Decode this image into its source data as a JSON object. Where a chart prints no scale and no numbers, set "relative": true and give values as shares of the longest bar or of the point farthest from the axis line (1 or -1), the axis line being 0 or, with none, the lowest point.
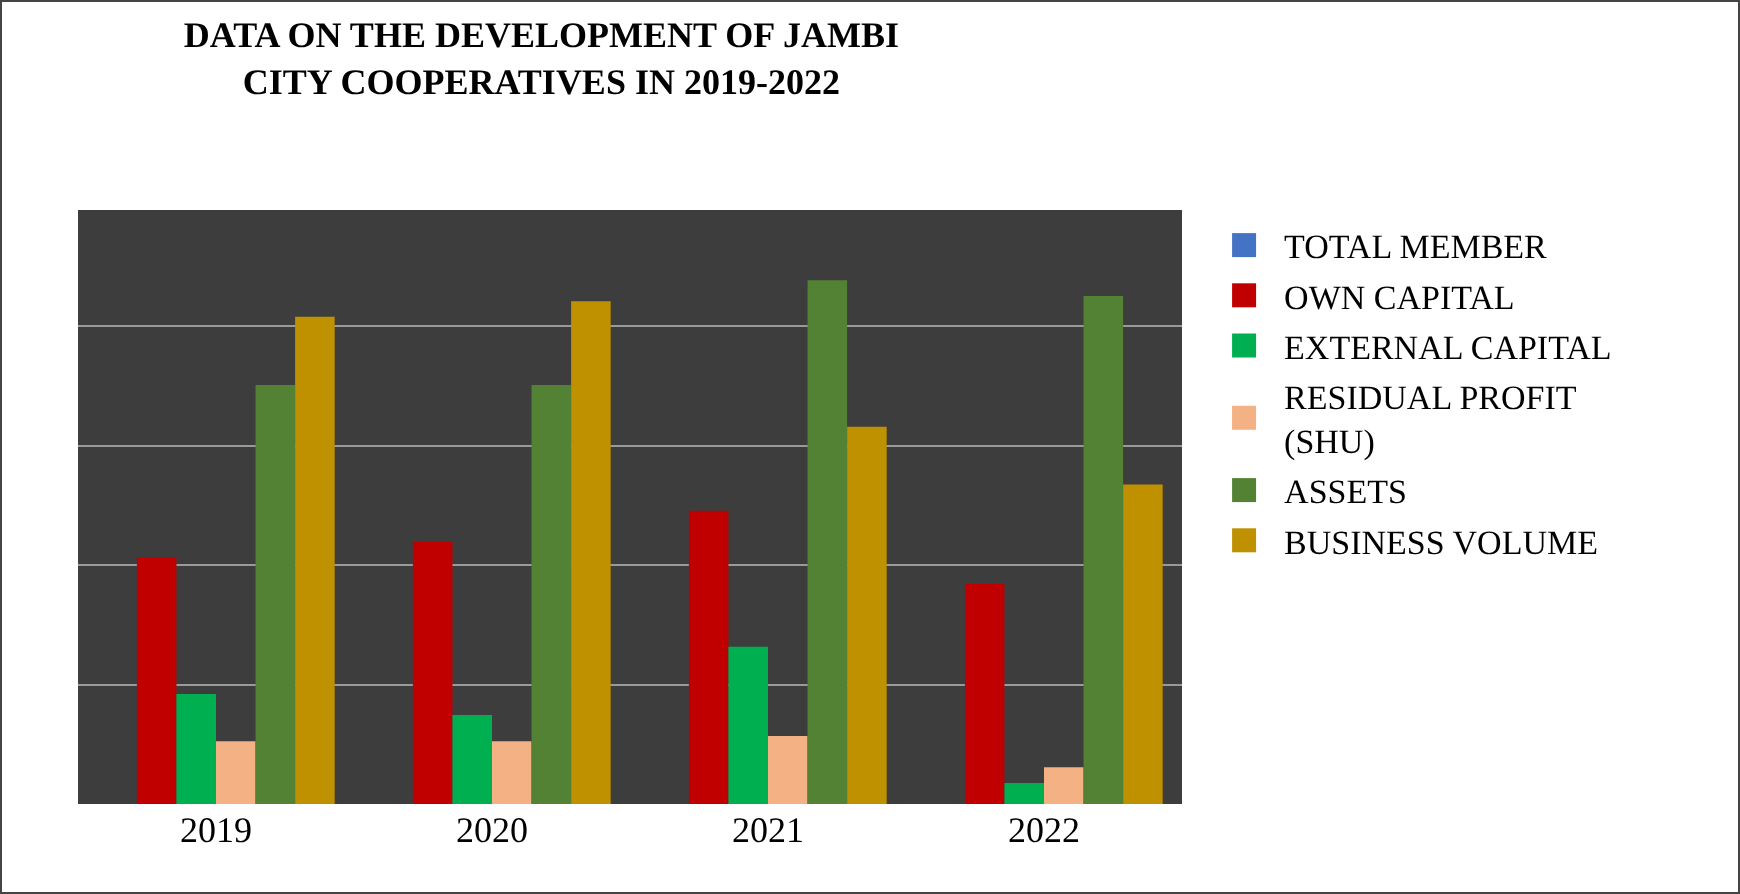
{
  "chart_data": {
    "type": "bar",
    "title": "DATA ON THE DEVELOPMENT OF JAMBI CITY COOPERATIVES IN 2019-2022",
    "relative": true,
    "categories": [
      "2019",
      "2020",
      "2021",
      "2022"
    ],
    "series": [
      {
        "name": "TOTAL MEMBER",
        "color": "#4472c4",
        "values": [
          0,
          0,
          0,
          0
        ]
      },
      {
        "name": "OWN CAPITAL",
        "color": "#c00000",
        "values": [
          0.47,
          0.5,
          0.56,
          0.42
        ]
      },
      {
        "name": "EXTERNAL CAPITAL",
        "color": "#00b050",
        "values": [
          0.21,
          0.17,
          0.3,
          0.04
        ]
      },
      {
        "name": "RESIDUAL PROFIT (SHU)",
        "color": "#f4b183",
        "values": [
          0.12,
          0.12,
          0.13,
          0.07
        ]
      },
      {
        "name": "ASSETS",
        "color": "#548235",
        "values": [
          0.8,
          0.8,
          1,
          0.97
        ]
      },
      {
        "name": "BUSINESS VOLUME",
        "color": "#bf9000",
        "values": [
          0.93,
          0.96,
          0.72,
          0.61
        ]
      }
    ],
    "grid": "y",
    "legend": "right"
  }
}
